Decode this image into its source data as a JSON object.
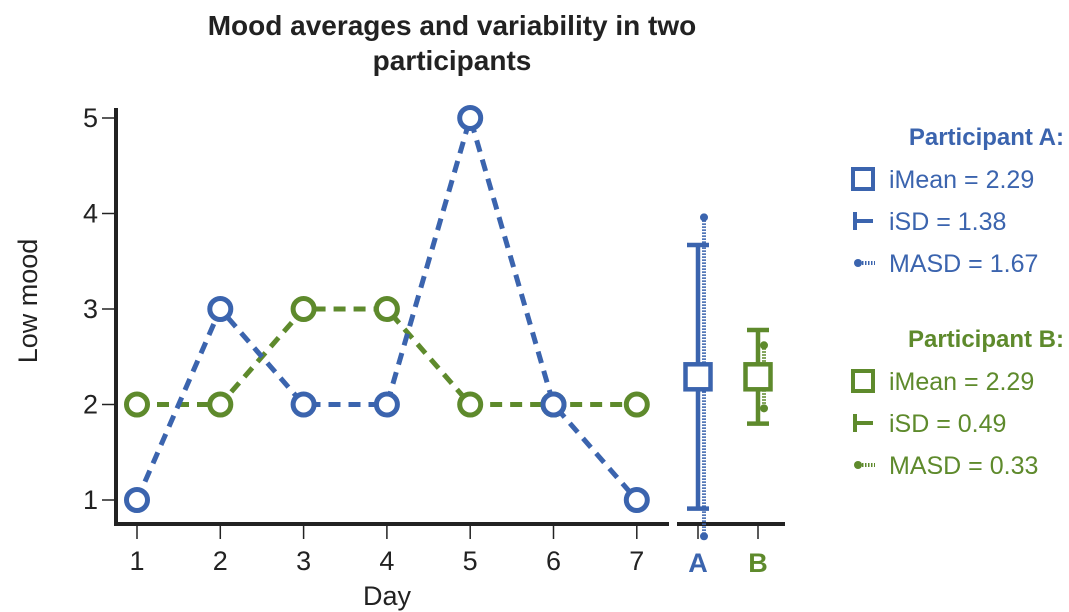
{
  "chart_data": {
    "type": "line",
    "title_line1": "Mood averages and variability in two",
    "title_line2": "participants",
    "xlabel": "Day",
    "ylabel": "Low mood",
    "x": [
      1,
      2,
      3,
      4,
      5,
      6,
      7
    ],
    "x_tick_labels": [
      "1",
      "2",
      "3",
      "4",
      "5",
      "6",
      "7"
    ],
    "y_ticks": [
      "1",
      "2",
      "3",
      "4",
      "5"
    ],
    "ylim": [
      1,
      5
    ],
    "grid": false,
    "legend_position": "right",
    "series": [
      {
        "key": "A",
        "color": "#3B64AE",
        "line_style": "dashed",
        "values": [
          1,
          3,
          2,
          2,
          5,
          2,
          1
        ],
        "summary_label": "A",
        "imean": 2.29,
        "isd": 1.38,
        "masd": 1.67,
        "legend": {
          "title": "Participant A:",
          "imean_text": "iMean = 2.29",
          "isd_text": "iSD = 1.38",
          "masd_text": "MASD = 1.67"
        }
      },
      {
        "key": "B",
        "color": "#5E8A2C",
        "line_style": "dashed",
        "values": [
          2,
          2,
          3,
          3,
          2,
          2,
          2
        ],
        "summary_label": "B",
        "imean": 2.29,
        "isd": 0.49,
        "masd": 0.33,
        "legend": {
          "title": "Participant B:",
          "imean_text": "iMean = 2.29",
          "isd_text": "iSD = 0.49",
          "masd_text": "MASD = 0.33"
        }
      }
    ]
  }
}
